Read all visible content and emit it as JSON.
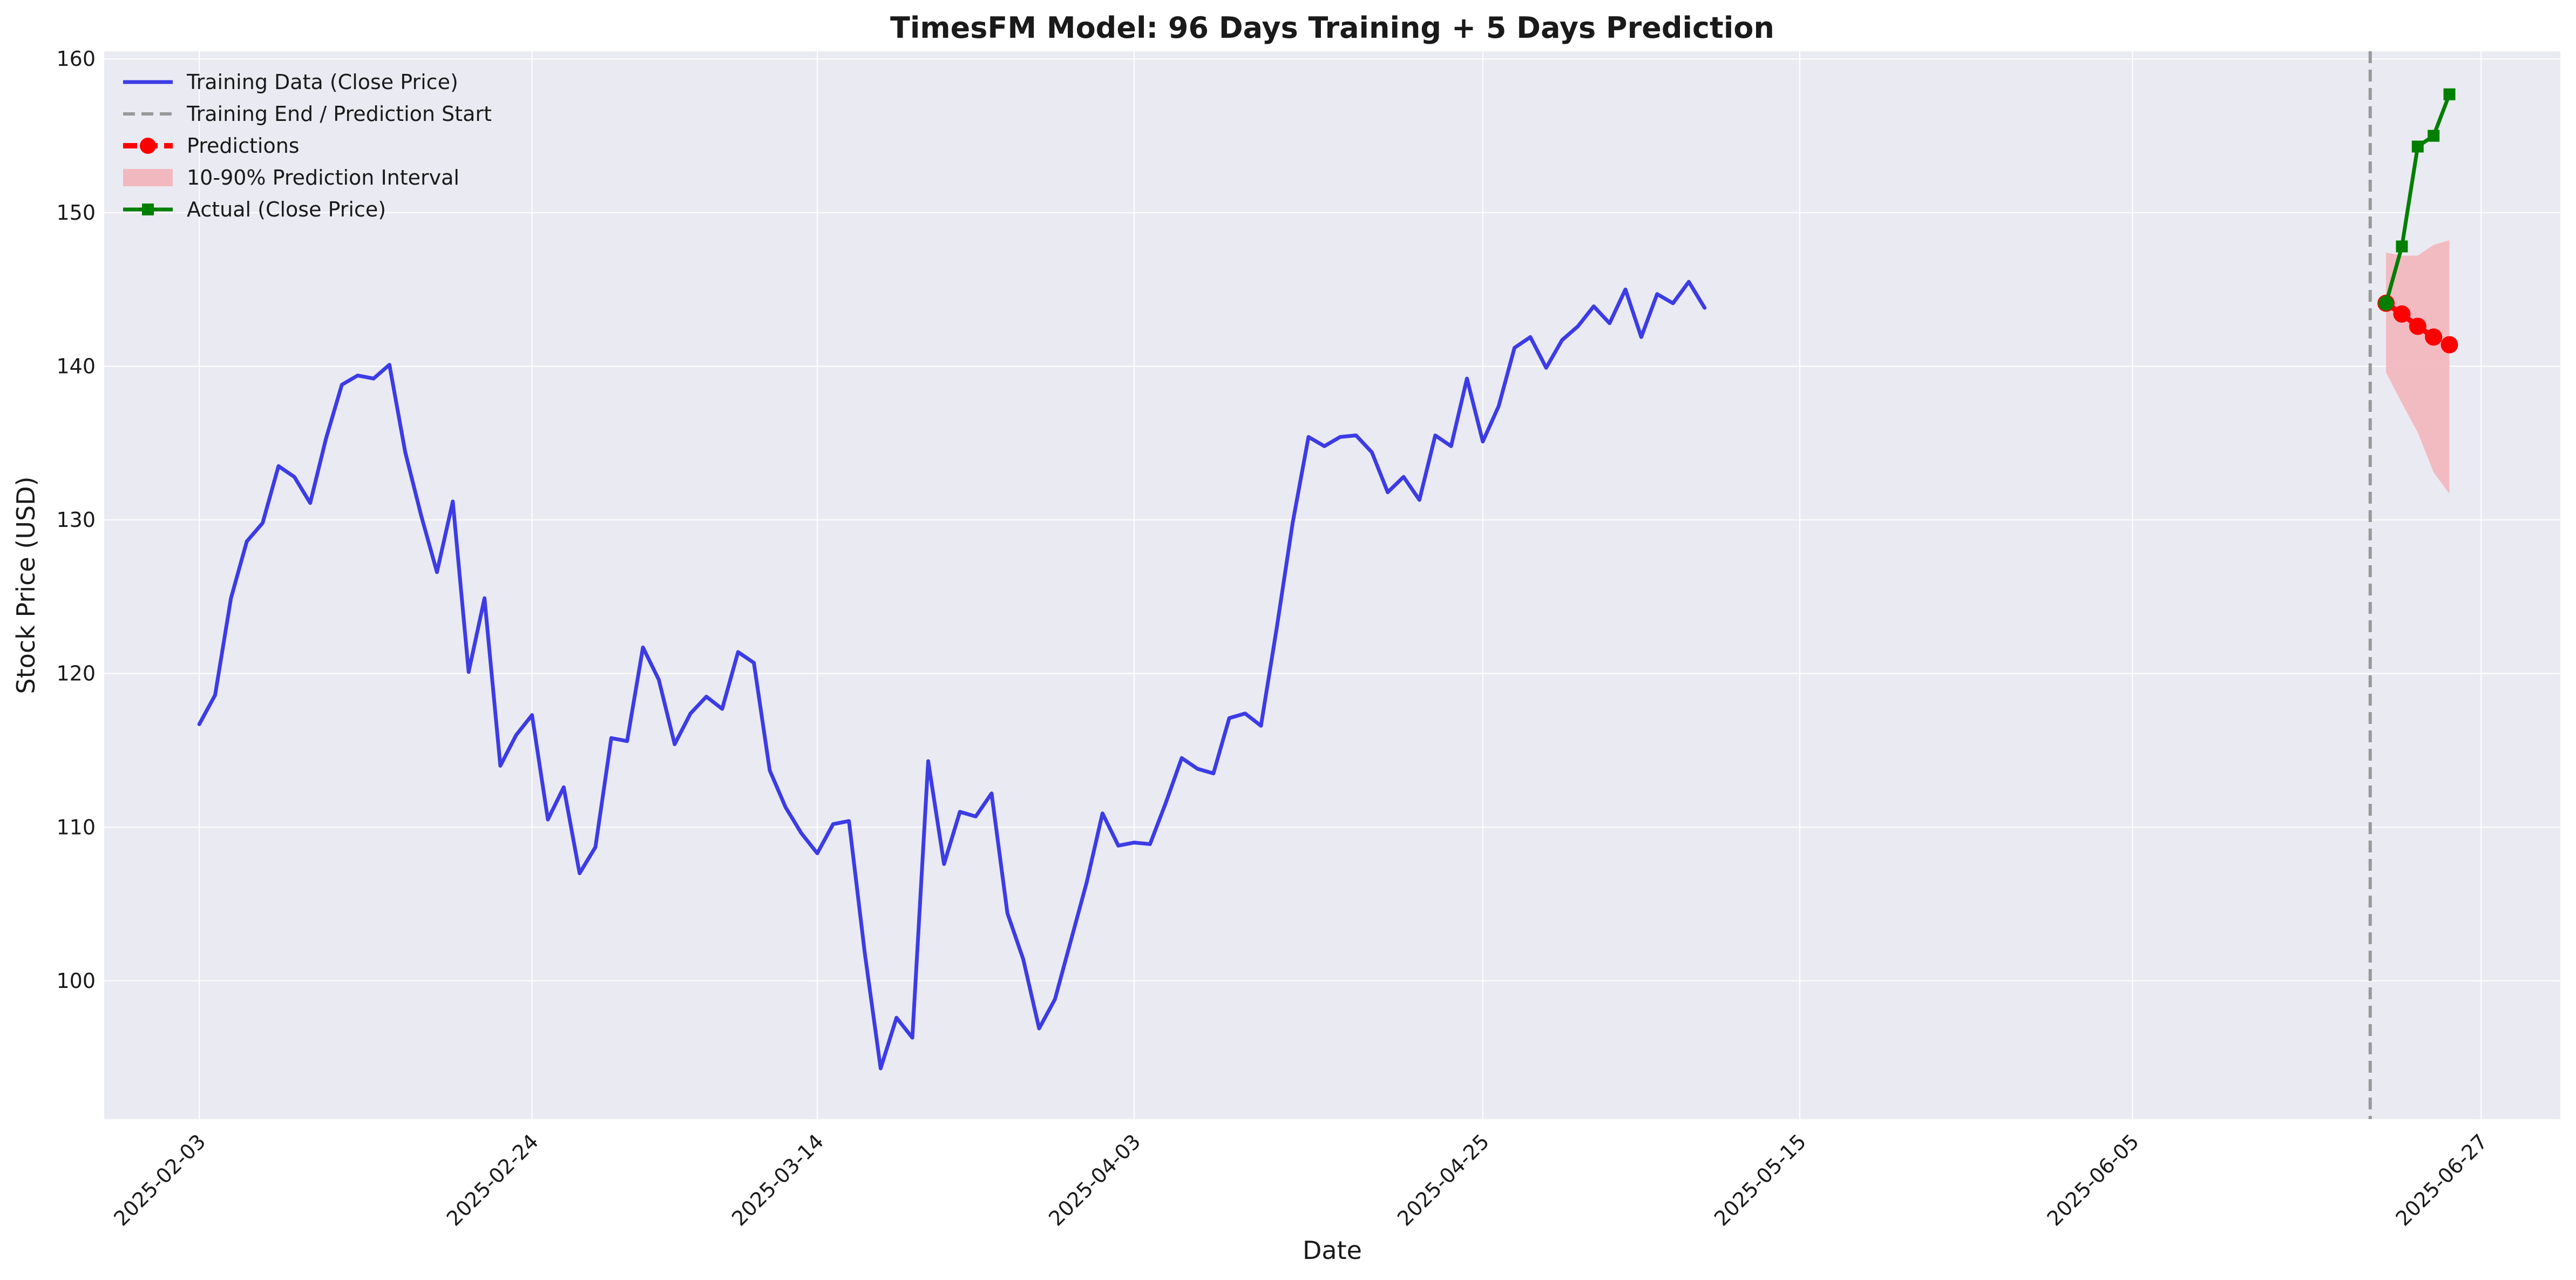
{
  "chart_data": {
    "type": "line",
    "title": "TimesFM Model: 96 Days Training + 5 Days Prediction",
    "xlabel": "Date",
    "ylabel": "Stock Price (USD)",
    "ylim": [
      91,
      160.5
    ],
    "xlim": [
      "2025-01-28",
      "2025-07-02"
    ],
    "x_ticks": [
      "2025-02-03",
      "2025-02-24",
      "2025-03-14",
      "2025-04-03",
      "2025-04-25",
      "2025-05-15",
      "2025-06-05",
      "2025-06-27"
    ],
    "y_ticks": [
      100,
      110,
      120,
      130,
      140,
      150,
      160
    ],
    "grid": true,
    "legend_position": "top-left",
    "vertical_line": {
      "name": "Training End / Prediction Start",
      "x": "2025-06-20",
      "color": "#999999"
    },
    "series": [
      {
        "name": "Training Data (Close Price)",
        "color": "#3c3ce6",
        "x": [
          "2025-02-03",
          "2025-02-04",
          "2025-02-05",
          "2025-02-06",
          "2025-02-07",
          "2025-02-08",
          "2025-02-09",
          "2025-02-10",
          "2025-02-11",
          "2025-02-12",
          "2025-02-13",
          "2025-02-14",
          "2025-02-15",
          "2025-02-16",
          "2025-02-17",
          "2025-02-18",
          "2025-02-19",
          "2025-02-20",
          "2025-02-21",
          "2025-02-22",
          "2025-02-23",
          "2025-02-24",
          "2025-02-25",
          "2025-02-26",
          "2025-02-27",
          "2025-02-28",
          "2025-03-01",
          "2025-03-02",
          "2025-03-03",
          "2025-03-04",
          "2025-03-05",
          "2025-03-06",
          "2025-03-07",
          "2025-03-08",
          "2025-03-09",
          "2025-03-10",
          "2025-03-11",
          "2025-03-12",
          "2025-03-13",
          "2025-03-14",
          "2025-03-15",
          "2025-03-16",
          "2025-03-17",
          "2025-03-18",
          "2025-03-19",
          "2025-03-20",
          "2025-03-21",
          "2025-03-22",
          "2025-03-23",
          "2025-03-24",
          "2025-03-25",
          "2025-03-26",
          "2025-03-27",
          "2025-03-28",
          "2025-03-29",
          "2025-03-30",
          "2025-03-31",
          "2025-04-01",
          "2025-04-02",
          "2025-04-03",
          "2025-04-04",
          "2025-04-05",
          "2025-04-06",
          "2025-04-07",
          "2025-04-08",
          "2025-04-09",
          "2025-04-10",
          "2025-04-11",
          "2025-04-12",
          "2025-04-13",
          "2025-04-14",
          "2025-04-15",
          "2025-04-16",
          "2025-04-17",
          "2025-04-18",
          "2025-04-19",
          "2025-04-20",
          "2025-04-21",
          "2025-04-22",
          "2025-04-23",
          "2025-04-24",
          "2025-04-25",
          "2025-04-26",
          "2025-04-27",
          "2025-04-28",
          "2025-04-29",
          "2025-04-30",
          "2025-05-01",
          "2025-05-02",
          "2025-05-03",
          "2025-05-04",
          "2025-05-05",
          "2025-05-06",
          "2025-05-07",
          "2025-05-08",
          "2025-05-09"
        ],
        "values": [
          116.7,
          118.6,
          124.9,
          128.6,
          129.8,
          133.5,
          132.8,
          131.1,
          135.3,
          138.8,
          139.4,
          139.2,
          140.1,
          134.4,
          130.3,
          126.6,
          131.2,
          120.1,
          124.9,
          114.0,
          116.0,
          117.3,
          110.5,
          112.6,
          107.0,
          108.7,
          115.8,
          115.6,
          121.7,
          119.6,
          115.4,
          117.4,
          118.5,
          117.7,
          121.4,
          120.7,
          113.7,
          111.3,
          109.6,
          108.3,
          110.2,
          110.4,
          101.8,
          94.3,
          97.6,
          96.3,
          114.3,
          107.6,
          111.0,
          110.7,
          112.2,
          104.4,
          101.4,
          96.9,
          98.8,
          102.6,
          106.4,
          110.9,
          108.8,
          109.0,
          108.9,
          111.6,
          114.5,
          113.8,
          113.5,
          117.1,
          117.4,
          116.6,
          123.0,
          129.8,
          135.4,
          134.8,
          135.4,
          135.5,
          134.4,
          131.8,
          132.8,
          131.3,
          135.5,
          134.8,
          139.2,
          135.1,
          137.4,
          141.2,
          141.9,
          139.9,
          141.7,
          142.6,
          143.9,
          142.8,
          145.0,
          141.9,
          144.7,
          144.1,
          145.5,
          143.8
        ]
      },
      {
        "name": "Predictions",
        "color": "#ff0000",
        "x": [
          "2025-06-21",
          "2025-06-22",
          "2025-06-23",
          "2025-06-24",
          "2025-06-25"
        ],
        "values": [
          144.1,
          143.4,
          142.6,
          141.9,
          141.4
        ]
      },
      {
        "name": "Actual (Close Price)",
        "color": "#007f00",
        "x": [
          "2025-06-21",
          "2025-06-22",
          "2025-06-23",
          "2025-06-24",
          "2025-06-25"
        ],
        "values": [
          144.1,
          147.8,
          154.3,
          155.0,
          157.7
        ]
      }
    ],
    "interval": {
      "name": "10-90% Prediction Interval",
      "color": "#f2b8bf",
      "x": [
        "2025-06-21",
        "2025-06-22",
        "2025-06-23",
        "2025-06-24",
        "2025-06-25"
      ],
      "lower": [
        139.6,
        137.6,
        135.7,
        133.1,
        131.7
      ],
      "upper": [
        147.4,
        147.2,
        147.2,
        147.9,
        148.2
      ]
    },
    "legend": [
      {
        "label": "Training Data (Close Price)",
        "style": "solid",
        "color": "#3c3ce6"
      },
      {
        "label": "Training End / Prediction Start",
        "style": "dashed",
        "color": "#999999"
      },
      {
        "label": "Predictions",
        "style": "dashed-dot",
        "color": "#ff0000"
      },
      {
        "label": "10-90% Prediction Interval",
        "style": "patch",
        "color": "#f2b8bf"
      },
      {
        "label": "Actual (Close Price)",
        "style": "solid-square",
        "color": "#007f00"
      }
    ]
  }
}
